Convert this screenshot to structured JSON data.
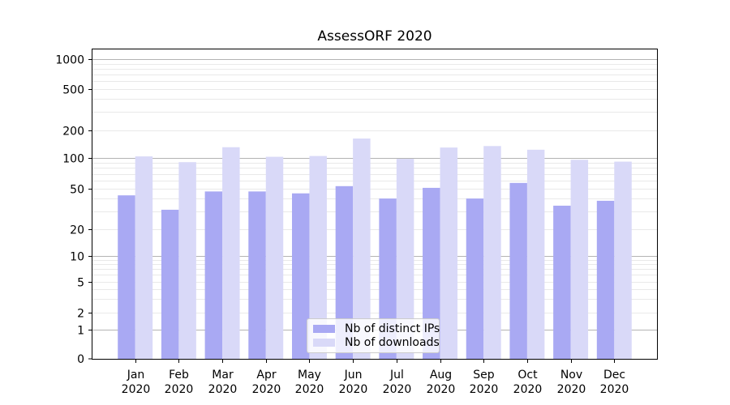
{
  "chart_data": {
    "type": "bar",
    "title": "AssessORF 2020",
    "categories": [
      "Jan",
      "Feb",
      "Mar",
      "Apr",
      "May",
      "Jun",
      "Jul",
      "Aug",
      "Sep",
      "Oct",
      "Nov",
      "Dec"
    ],
    "category_year": "2020",
    "series": [
      {
        "name": "Nb of distinct IPs",
        "color": "#a9a9f3",
        "values": [
          43,
          31,
          47,
          47,
          45,
          53,
          40,
          51,
          40,
          57,
          34,
          38
        ]
      },
      {
        "name": "Nb of downloads",
        "color": "#d9d9f8",
        "values": [
          104,
          91,
          131,
          103,
          105,
          163,
          98,
          130,
          135,
          123,
          96,
          92
        ]
      }
    ],
    "y_axis": {
      "scale": "symlog",
      "ticks": [
        0,
        1,
        2,
        5,
        10,
        20,
        50,
        100,
        200,
        500,
        1000
      ],
      "range": [
        0,
        1000
      ]
    },
    "x_axis": {
      "label": ""
    },
    "grid": "both",
    "legend_position": "lower center"
  },
  "colors": {
    "grid_major": "#b3b3b3",
    "grid_minor": "#e9e9e9",
    "axis": "#000000",
    "text": "#000000",
    "background": "#ffffff"
  }
}
